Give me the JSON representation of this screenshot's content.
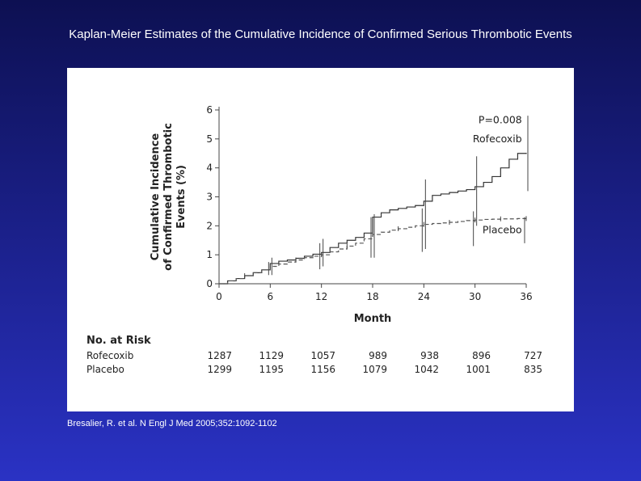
{
  "slide": {
    "title": "Kaplan-Meier Estimates of the Cumulative Incidence of Confirmed Serious Thrombotic Events",
    "citation": "Bresalier, R. et al. N Engl J Med 2005;352:1092-1102"
  },
  "chart_data": {
    "type": "line",
    "xlabel": "Month",
    "ylabel": [
      "Cumulative Incidence",
      "of Confirmed Thrombotic",
      "Events (%)"
    ],
    "xlim": [
      0,
      36
    ],
    "ylim": [
      0,
      6
    ],
    "xticks": [
      0,
      6,
      12,
      18,
      24,
      30,
      36
    ],
    "yticks": [
      0,
      1,
      2,
      3,
      4,
      5,
      6
    ],
    "grid": false,
    "annotations": [
      {
        "text": "P=0.008"
      }
    ],
    "series": [
      {
        "name": "Rofecoxib",
        "style": "solid",
        "x": [
          0,
          1,
          2,
          3,
          4,
          5,
          6,
          7,
          8,
          9,
          10,
          11,
          12,
          13,
          14,
          15,
          16,
          17,
          18,
          19,
          20,
          21,
          22,
          23,
          24,
          25,
          26,
          27,
          28,
          29,
          30,
          31,
          32,
          33,
          34,
          35,
          36
        ],
        "y": [
          0,
          0.1,
          0.18,
          0.28,
          0.38,
          0.48,
          0.7,
          0.78,
          0.82,
          0.88,
          0.95,
          1.02,
          1.08,
          1.25,
          1.4,
          1.5,
          1.6,
          1.75,
          2.3,
          2.45,
          2.55,
          2.6,
          2.65,
          2.7,
          2.85,
          3.05,
          3.1,
          3.15,
          3.2,
          3.25,
          3.35,
          3.5,
          3.7,
          4.0,
          4.3,
          4.5,
          4.52
        ],
        "ci_bars": [
          {
            "x": 6,
            "low": 0.3,
            "high": 0.9
          },
          {
            "x": 12,
            "low": 0.6,
            "high": 1.55
          },
          {
            "x": 18,
            "low": 0.9,
            "high": 2.4
          },
          {
            "x": 24,
            "low": 1.2,
            "high": 3.6
          },
          {
            "x": 30,
            "low": 2.0,
            "high": 4.4
          },
          {
            "x": 36,
            "low": 3.2,
            "high": 5.8
          }
        ]
      },
      {
        "name": "Placebo",
        "style": "dashed",
        "x": [
          0,
          1,
          2,
          3,
          4,
          5,
          6,
          7,
          8,
          9,
          10,
          11,
          12,
          13,
          14,
          15,
          16,
          17,
          18,
          19,
          20,
          21,
          22,
          23,
          24,
          25,
          26,
          27,
          28,
          29,
          30,
          31,
          32,
          33,
          34,
          35,
          36
        ],
        "y": [
          0,
          0.1,
          0.18,
          0.28,
          0.38,
          0.48,
          0.6,
          0.68,
          0.75,
          0.82,
          0.9,
          0.95,
          1.0,
          1.1,
          1.2,
          1.3,
          1.4,
          1.55,
          1.7,
          1.78,
          1.85,
          1.9,
          1.95,
          2.0,
          2.05,
          2.08,
          2.1,
          2.12,
          2.15,
          2.18,
          2.2,
          2.22,
          2.23,
          2.24,
          2.24,
          2.25,
          2.25
        ],
        "ci_bars": [
          {
            "x": 6,
            "low": 0.3,
            "high": 0.75
          },
          {
            "x": 12,
            "low": 0.5,
            "high": 1.4
          },
          {
            "x": 18,
            "low": 0.9,
            "high": 2.3
          },
          {
            "x": 24,
            "low": 1.1,
            "high": 2.6
          },
          {
            "x": 30,
            "low": 1.3,
            "high": 2.5
          },
          {
            "x": 36,
            "low": 1.4,
            "high": 2.3
          }
        ]
      }
    ]
  },
  "risk_table": {
    "title": "No. at Risk",
    "rows": [
      {
        "label": "Rofecoxib",
        "values": [
          "1287",
          "1129",
          "1057",
          "989",
          "938",
          "896",
          "727"
        ]
      },
      {
        "label": "Placebo",
        "values": [
          "1299",
          "1195",
          "1156",
          "1079",
          "1042",
          "1001",
          "835"
        ]
      }
    ]
  }
}
